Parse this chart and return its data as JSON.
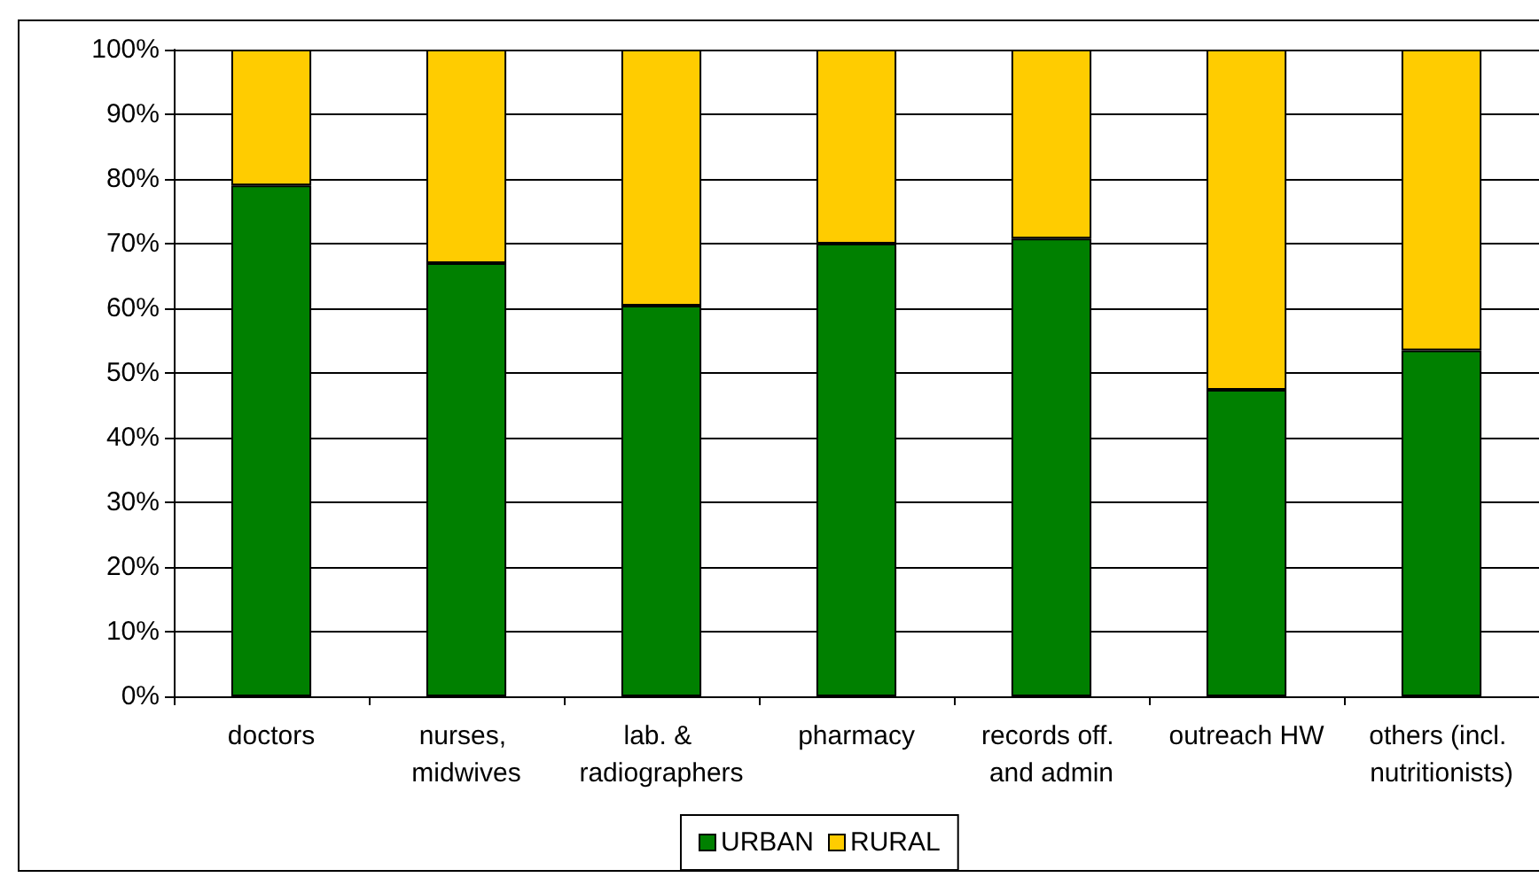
{
  "chart_data": {
    "type": "bar",
    "stacked": true,
    "categories": [
      "doctors",
      "nurses, midwives",
      "lab. & radiographers",
      "pharmacy",
      "records off. and admin",
      "outreach HW",
      "others (incl. nutritionists)"
    ],
    "series": [
      {
        "name": "URBAN",
        "color": "#008000",
        "values": [
          79,
          67,
          60.4,
          70,
          70.8,
          47.4,
          53.5
        ]
      },
      {
        "name": "RURAL",
        "color": "#ffcc00",
        "values": [
          21,
          33,
          39.6,
          30,
          29.2,
          52.6,
          46.5
        ]
      }
    ],
    "ylim": [
      0,
      100
    ],
    "yticks": [
      {
        "value": 0,
        "label": "0%"
      },
      {
        "value": 10,
        "label": "10%"
      },
      {
        "value": 20,
        "label": "20%"
      },
      {
        "value": 30,
        "label": "30%"
      },
      {
        "value": 40,
        "label": "40%"
      },
      {
        "value": 50,
        "label": "50%"
      },
      {
        "value": 60,
        "label": "60%"
      },
      {
        "value": 70,
        "label": "70%"
      },
      {
        "value": 80,
        "label": "80%"
      },
      {
        "value": 90,
        "label": "90%"
      },
      {
        "value": 100,
        "label": "100%"
      }
    ],
    "grid": "y",
    "legend": "bottom"
  }
}
